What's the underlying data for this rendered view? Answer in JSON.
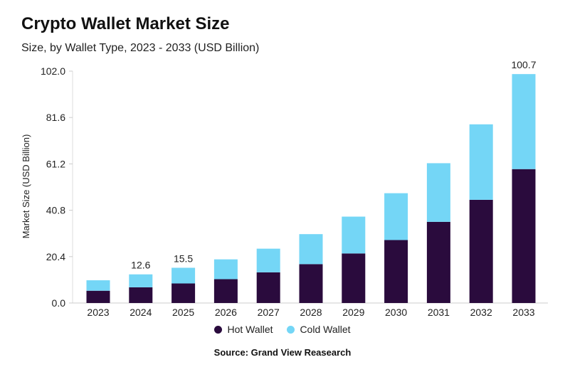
{
  "chart_data": {
    "type": "bar",
    "stacked": true,
    "title": "Crypto Wallet Market Size",
    "subtitle": "Size, by Wallet Type, 2023 - 2033 (USD Billion)",
    "xlabel": "",
    "ylabel": "Market Size (USD Billion)",
    "ylim": [
      0,
      102.0
    ],
    "yticks": [
      "0.0",
      "20.4",
      "40.8",
      "61.2",
      "81.6",
      "102.0"
    ],
    "categories": [
      "2023",
      "2024",
      "2025",
      "2026",
      "2027",
      "2028",
      "2029",
      "2030",
      "2031",
      "2032",
      "2033"
    ],
    "series": [
      {
        "name": "Hot Wallet",
        "color": "#2a0b3d",
        "values": [
          5.4,
          6.9,
          8.6,
          10.5,
          13.5,
          17.1,
          21.8,
          27.7,
          35.7,
          45.4,
          58.9
        ]
      },
      {
        "name": "Cold Wallet",
        "color": "#74d6f6",
        "values": [
          4.6,
          5.7,
          6.9,
          8.7,
          10.4,
          13.2,
          16.2,
          20.6,
          25.8,
          33.2,
          41.8
        ]
      }
    ],
    "data_labels": {
      "2024": "12.6",
      "2025": "15.5",
      "2033": "100.7"
    },
    "grid": false,
    "legend": "bottom",
    "source": "Source: Grand View Reasearch"
  }
}
